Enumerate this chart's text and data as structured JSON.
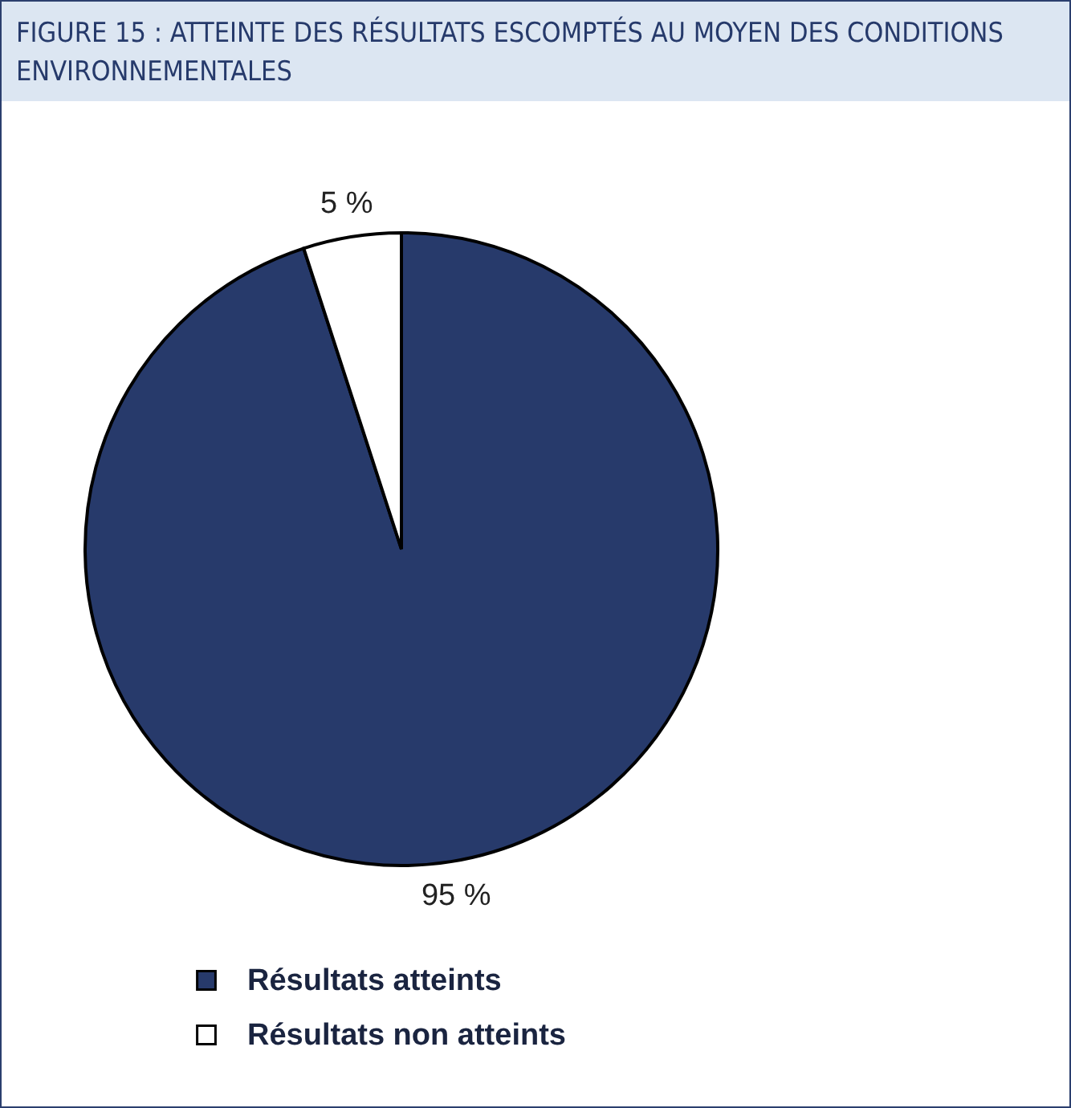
{
  "chart_data": {
    "type": "pie",
    "title": "FIGURE 15 : ATTEINTE DES RÉSULTATS ESCOMPTÉS AU MOYEN DES CONDITIONS ENVIRONNEMENTALES",
    "categories": [
      "Résultats atteints",
      "Résultats non atteints"
    ],
    "values": [
      95,
      5
    ],
    "colors": [
      "#273a6b",
      "#ffffff"
    ],
    "value_labels": [
      "95 %",
      "5 %"
    ],
    "legend": "bottom"
  }
}
